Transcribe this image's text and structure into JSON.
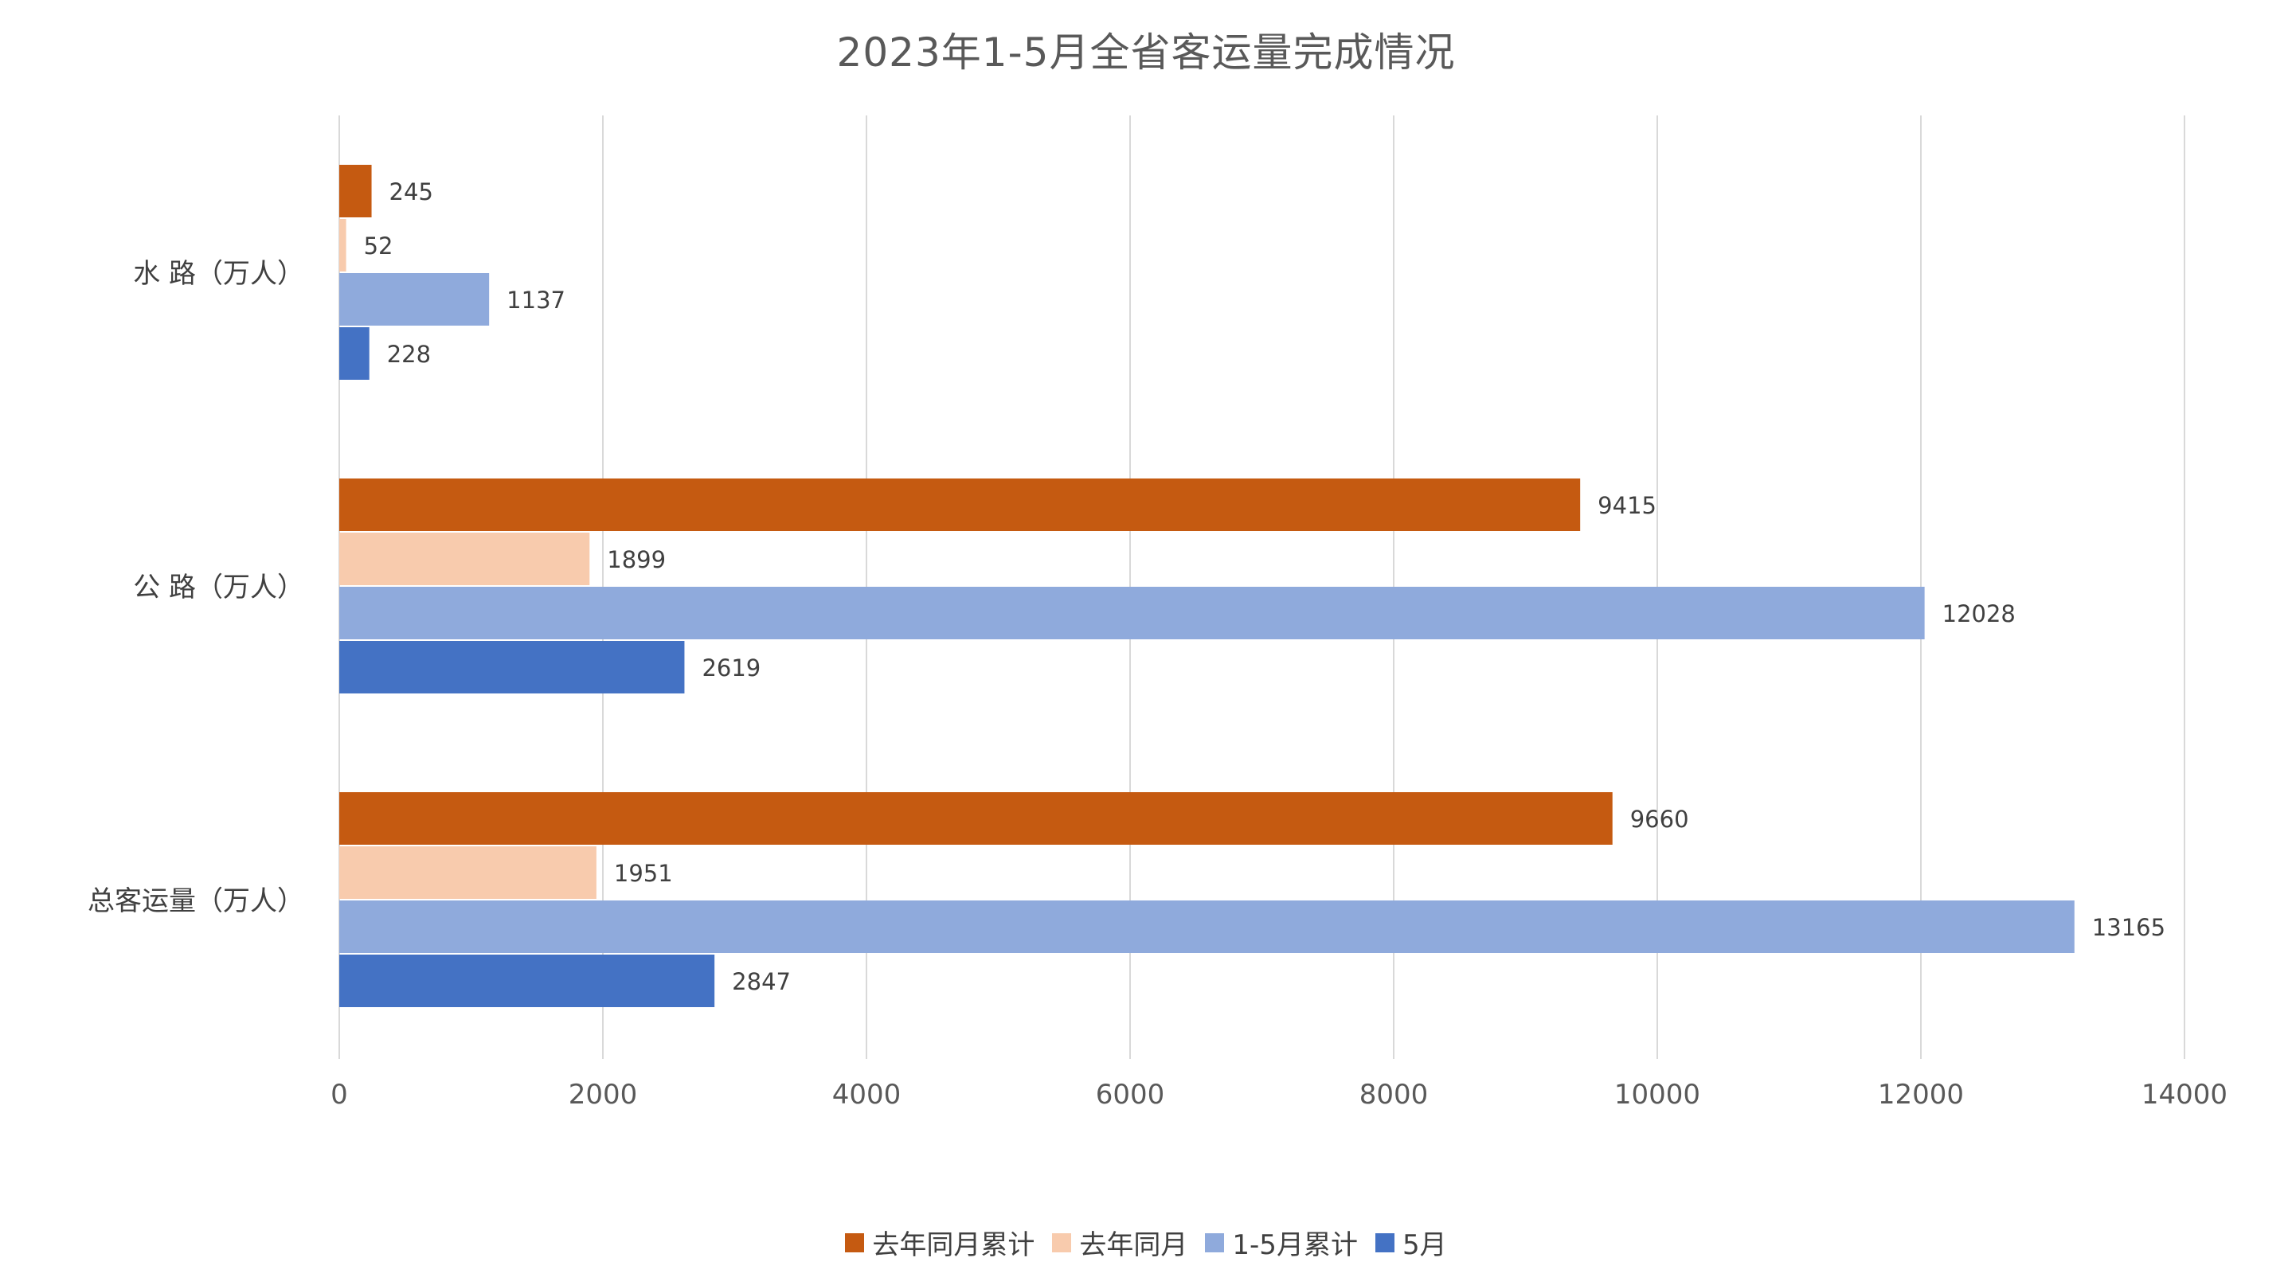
{
  "chart_data": {
    "type": "bar",
    "orientation": "horizontal",
    "title": "2023年1-5月全省客运量完成情况",
    "categories": [
      "水 路（万人）",
      "公 路（万人）",
      "总客运量（万人）"
    ],
    "series": [
      {
        "name": "去年同月累计",
        "color": "#C55A11",
        "values": [
          245,
          9415,
          9660
        ]
      },
      {
        "name": "去年同月",
        "color": "#F8CBAD",
        "values": [
          52,
          1899,
          1951
        ]
      },
      {
        "name": "1-5月累计",
        "color": "#8FAADC",
        "values": [
          1137,
          12028,
          13165
        ]
      },
      {
        "name": "5月",
        "color": "#4472C4",
        "values": [
          228,
          2619,
          2847
        ]
      }
    ],
    "xlim": [
      0,
      14000
    ],
    "xticks": [
      "0",
      "2000",
      "4000",
      "6000",
      "8000",
      "10000",
      "12000",
      "14000"
    ],
    "xlabel": "",
    "ylabel": "",
    "grid": "vertical",
    "legend_position": "bottom",
    "data_labels": true
  }
}
